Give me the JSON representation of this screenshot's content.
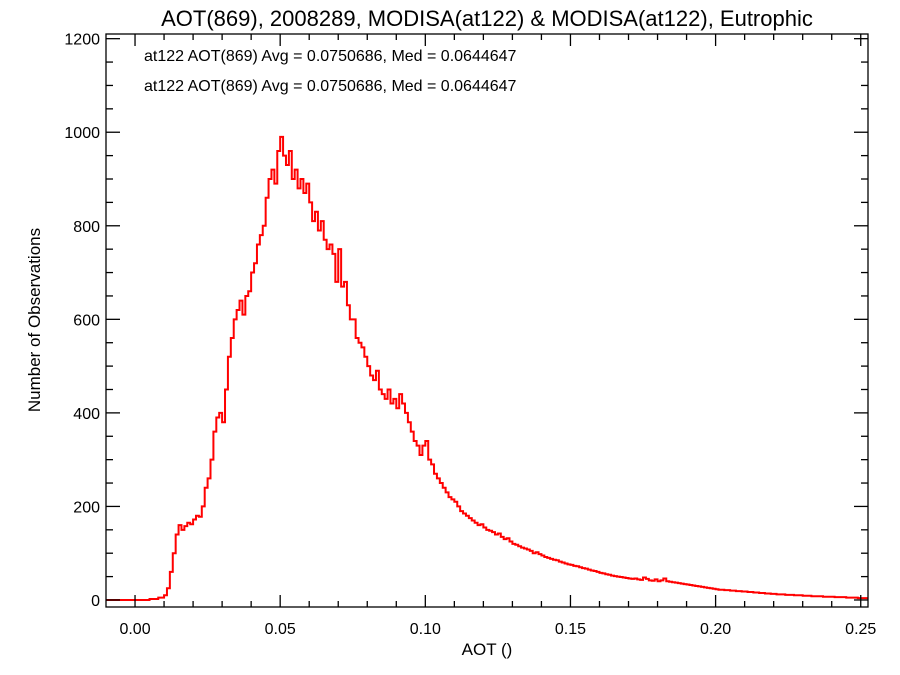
{
  "chart_data": {
    "type": "bar",
    "title": "AOT(869), 2008289, MODISA(at122) & MODISA(at122), Eutrophic",
    "xlabel": "AOT ()",
    "ylabel": "Number of Observations",
    "xlim": [
      -0.01,
      0.2525
    ],
    "ylim": [
      -15,
      1210
    ],
    "x_ticks": [
      {
        "value": 0.0,
        "label": "0.00"
      },
      {
        "value": 0.05,
        "label": "0.05"
      },
      {
        "value": 0.1,
        "label": "0.10"
      },
      {
        "value": 0.15,
        "label": "0.15"
      },
      {
        "value": 0.2,
        "label": "0.20"
      },
      {
        "value": 0.25,
        "label": "0.25"
      }
    ],
    "y_ticks": [
      {
        "value": 0,
        "label": "0"
      },
      {
        "value": 200,
        "label": "200"
      },
      {
        "value": 400,
        "label": "400"
      },
      {
        "value": 600,
        "label": "600"
      },
      {
        "value": 800,
        "label": "800"
      },
      {
        "value": 1000,
        "label": "1000"
      },
      {
        "value": 1200,
        "label": "1200"
      }
    ],
    "grid": false,
    "legend_position": "top-left",
    "legend_entries": [
      {
        "text": "at122 AOT(869) Avg = 0.0750686, Med = 0.0644647",
        "color": "#000000"
      },
      {
        "text": "at122 AOT(869) Avg = 0.0750686, Med = 0.0644647",
        "color": "#ff0000"
      }
    ],
    "series": [
      {
        "style": "step",
        "color": "#ff0000",
        "points": [
          [
            -0.01,
            0
          ],
          [
            0.002,
            0
          ],
          [
            0.005,
            2
          ],
          [
            0.008,
            5
          ],
          [
            0.01,
            10
          ],
          [
            0.011,
            25
          ],
          [
            0.012,
            60
          ],
          [
            0.013,
            100
          ],
          [
            0.014,
            140
          ],
          [
            0.015,
            160
          ],
          [
            0.016,
            150
          ],
          [
            0.017,
            158
          ],
          [
            0.018,
            165
          ],
          [
            0.019,
            162
          ],
          [
            0.02,
            172
          ],
          [
            0.021,
            180
          ],
          [
            0.022,
            178
          ],
          [
            0.023,
            200
          ],
          [
            0.024,
            240
          ],
          [
            0.025,
            260
          ],
          [
            0.026,
            300
          ],
          [
            0.027,
            360
          ],
          [
            0.028,
            390
          ],
          [
            0.029,
            400
          ],
          [
            0.03,
            380
          ],
          [
            0.031,
            450
          ],
          [
            0.032,
            520
          ],
          [
            0.033,
            560
          ],
          [
            0.034,
            600
          ],
          [
            0.035,
            620
          ],
          [
            0.036,
            640
          ],
          [
            0.037,
            610
          ],
          [
            0.038,
            650
          ],
          [
            0.039,
            660
          ],
          [
            0.04,
            700
          ],
          [
            0.041,
            720
          ],
          [
            0.042,
            760
          ],
          [
            0.043,
            780
          ],
          [
            0.044,
            800
          ],
          [
            0.045,
            860
          ],
          [
            0.046,
            900
          ],
          [
            0.047,
            920
          ],
          [
            0.048,
            890
          ],
          [
            0.049,
            960
          ],
          [
            0.05,
            990
          ],
          [
            0.051,
            950
          ],
          [
            0.052,
            930
          ],
          [
            0.053,
            960
          ],
          [
            0.054,
            900
          ],
          [
            0.055,
            920
          ],
          [
            0.056,
            880
          ],
          [
            0.057,
            900
          ],
          [
            0.058,
            870
          ],
          [
            0.059,
            890
          ],
          [
            0.06,
            850
          ],
          [
            0.061,
            810
          ],
          [
            0.062,
            830
          ],
          [
            0.063,
            790
          ],
          [
            0.064,
            810
          ],
          [
            0.065,
            770
          ],
          [
            0.066,
            750
          ],
          [
            0.067,
            760
          ],
          [
            0.068,
            740
          ],
          [
            0.069,
            680
          ],
          [
            0.07,
            750
          ],
          [
            0.071,
            670
          ],
          [
            0.072,
            680
          ],
          [
            0.073,
            630
          ],
          [
            0.074,
            600
          ],
          [
            0.075,
            600
          ],
          [
            0.076,
            560
          ],
          [
            0.077,
            550
          ],
          [
            0.078,
            540
          ],
          [
            0.079,
            520
          ],
          [
            0.08,
            500
          ],
          [
            0.081,
            480
          ],
          [
            0.082,
            470
          ],
          [
            0.083,
            490
          ],
          [
            0.084,
            450
          ],
          [
            0.085,
            440
          ],
          [
            0.086,
            430
          ],
          [
            0.087,
            450
          ],
          [
            0.088,
            420
          ],
          [
            0.089,
            430
          ],
          [
            0.09,
            410
          ],
          [
            0.091,
            440
          ],
          [
            0.092,
            420
          ],
          [
            0.093,
            400
          ],
          [
            0.094,
            380
          ],
          [
            0.095,
            360
          ],
          [
            0.096,
            340
          ],
          [
            0.097,
            330
          ],
          [
            0.098,
            310
          ],
          [
            0.099,
            330
          ],
          [
            0.1,
            340
          ],
          [
            0.101,
            300
          ],
          [
            0.102,
            290
          ],
          [
            0.103,
            270
          ],
          [
            0.104,
            260
          ],
          [
            0.105,
            250
          ],
          [
            0.106,
            240
          ],
          [
            0.107,
            230
          ],
          [
            0.108,
            220
          ],
          [
            0.109,
            215
          ],
          [
            0.11,
            210
          ],
          [
            0.111,
            200
          ],
          [
            0.112,
            190
          ],
          [
            0.113,
            185
          ],
          [
            0.114,
            180
          ],
          [
            0.115,
            175
          ],
          [
            0.116,
            170
          ],
          [
            0.117,
            165
          ],
          [
            0.118,
            160
          ],
          [
            0.119,
            162
          ],
          [
            0.12,
            155
          ],
          [
            0.121,
            150
          ],
          [
            0.122,
            148
          ],
          [
            0.123,
            145
          ],
          [
            0.124,
            140
          ],
          [
            0.125,
            142
          ],
          [
            0.126,
            135
          ],
          [
            0.127,
            130
          ],
          [
            0.128,
            132
          ],
          [
            0.129,
            125
          ],
          [
            0.13,
            120
          ],
          [
            0.131,
            118
          ],
          [
            0.132,
            115
          ],
          [
            0.133,
            112
          ],
          [
            0.134,
            110
          ],
          [
            0.135,
            108
          ],
          [
            0.136,
            105
          ],
          [
            0.137,
            100
          ],
          [
            0.138,
            102
          ],
          [
            0.139,
            98
          ],
          [
            0.14,
            95
          ],
          [
            0.141,
            92
          ],
          [
            0.142,
            90
          ],
          [
            0.143,
            88
          ],
          [
            0.144,
            86
          ],
          [
            0.145,
            85
          ],
          [
            0.146,
            82
          ],
          [
            0.147,
            80
          ],
          [
            0.148,
            78
          ],
          [
            0.149,
            76
          ],
          [
            0.15,
            75
          ],
          [
            0.151,
            73
          ],
          [
            0.152,
            72
          ],
          [
            0.153,
            70
          ],
          [
            0.154,
            68
          ],
          [
            0.155,
            67
          ],
          [
            0.156,
            65
          ],
          [
            0.157,
            63
          ],
          [
            0.158,
            62
          ],
          [
            0.159,
            60
          ],
          [
            0.16,
            58
          ],
          [
            0.161,
            57
          ],
          [
            0.162,
            55
          ],
          [
            0.163,
            54
          ],
          [
            0.164,
            52
          ],
          [
            0.165,
            51
          ],
          [
            0.166,
            50
          ],
          [
            0.167,
            49
          ],
          [
            0.168,
            48
          ],
          [
            0.169,
            47
          ],
          [
            0.17,
            46
          ],
          [
            0.171,
            45
          ],
          [
            0.172,
            46
          ],
          [
            0.173,
            44
          ],
          [
            0.174,
            43
          ],
          [
            0.175,
            48
          ],
          [
            0.176,
            45
          ],
          [
            0.177,
            42
          ],
          [
            0.178,
            41
          ],
          [
            0.179,
            44
          ],
          [
            0.18,
            40
          ],
          [
            0.181,
            42
          ],
          [
            0.182,
            46
          ],
          [
            0.183,
            40
          ],
          [
            0.184,
            39
          ],
          [
            0.185,
            38
          ],
          [
            0.186,
            37
          ],
          [
            0.187,
            36
          ],
          [
            0.188,
            35
          ],
          [
            0.189,
            34
          ],
          [
            0.19,
            33
          ],
          [
            0.191,
            32
          ],
          [
            0.192,
            31
          ],
          [
            0.193,
            30
          ],
          [
            0.194,
            29
          ],
          [
            0.195,
            28
          ],
          [
            0.196,
            27
          ],
          [
            0.197,
            26
          ],
          [
            0.198,
            25
          ],
          [
            0.199,
            24
          ],
          [
            0.2,
            23
          ],
          [
            0.201,
            22
          ],
          [
            0.202,
            22
          ],
          [
            0.203,
            21
          ],
          [
            0.204,
            21
          ],
          [
            0.205,
            20
          ],
          [
            0.206,
            20
          ],
          [
            0.207,
            19
          ],
          [
            0.208,
            19
          ],
          [
            0.209,
            18
          ],
          [
            0.21,
            18
          ],
          [
            0.211,
            17
          ],
          [
            0.212,
            17
          ],
          [
            0.213,
            16
          ],
          [
            0.214,
            16
          ],
          [
            0.215,
            15
          ],
          [
            0.216,
            15
          ],
          [
            0.217,
            14
          ],
          [
            0.218,
            14
          ],
          [
            0.219,
            13
          ],
          [
            0.22,
            13
          ],
          [
            0.221,
            12
          ],
          [
            0.222,
            12
          ],
          [
            0.223,
            12
          ],
          [
            0.224,
            11
          ],
          [
            0.225,
            11
          ],
          [
            0.226,
            11
          ],
          [
            0.227,
            10
          ],
          [
            0.228,
            10
          ],
          [
            0.229,
            10
          ],
          [
            0.23,
            9
          ],
          [
            0.231,
            9
          ],
          [
            0.232,
            9
          ],
          [
            0.233,
            8
          ],
          [
            0.234,
            8
          ],
          [
            0.235,
            8
          ],
          [
            0.236,
            8
          ],
          [
            0.237,
            7
          ],
          [
            0.238,
            7
          ],
          [
            0.239,
            7
          ],
          [
            0.24,
            7
          ],
          [
            0.241,
            6
          ],
          [
            0.242,
            6
          ],
          [
            0.243,
            6
          ],
          [
            0.244,
            6
          ],
          [
            0.245,
            5
          ],
          [
            0.246,
            5
          ],
          [
            0.247,
            5
          ],
          [
            0.248,
            5
          ],
          [
            0.249,
            4
          ],
          [
            0.25,
            4
          ],
          [
            0.251,
            4
          ],
          [
            0.252,
            4
          ]
        ]
      }
    ]
  }
}
